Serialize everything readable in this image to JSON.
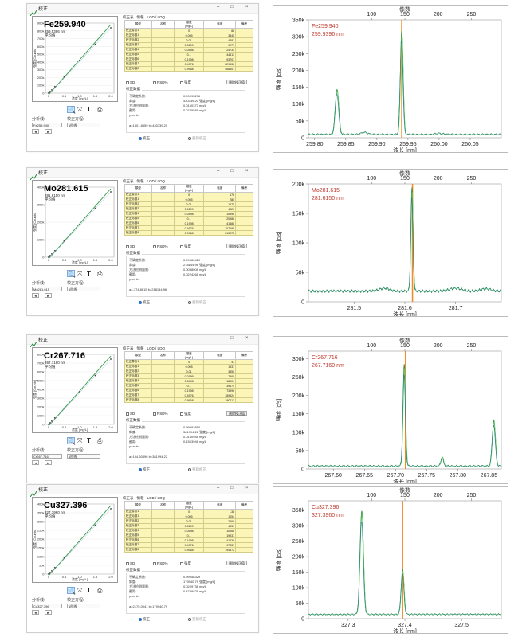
{
  "colors": {
    "accent": "#1f8a3a",
    "marker": "#f28c28",
    "label_red": "#c0392b",
    "row_yellow": "#fbf5b8"
  },
  "window": {
    "title": "校正",
    "buttons": {
      "minimize": "–",
      "maximize": "□",
      "close": "×"
    },
    "tabs": [
      "校正表",
      "情報",
      "LOD / LOQ"
    ],
    "table_headers": [
      "",
      "濃度",
      "強度",
      "単位"
    ],
    "header_type": "類型",
    "header_name": "名称",
    "header_conc_unit": "[mg/L]",
    "header_note": "備考",
    "checks": [
      "SD",
      "RSD%",
      "強度"
    ],
    "delete_label": "删除校正值",
    "result_title": "校正数据",
    "result_labels": [
      "不确定系数:",
      "斜度:",
      "方法检测量限:",
      "截距:",
      "y=a+bx"
    ],
    "radios": [
      "校正",
      "重新校正"
    ],
    "analyte_label": "分析线:",
    "calmode_label": "校正方程:",
    "calmode_value": "1阶线",
    "spin_prev": "◄",
    "spin_next": "►",
    "icons": [
      "zoom-icon",
      "pan-icon",
      "text-icon",
      "print-icon"
    ],
    "calib_ylabel": "强度 [Counts]",
    "calib_xlabel": "浓度 [mg/L]",
    "spec_xlabel": "波长 [nm]",
    "spec_ylabel": "强度 [c/s]",
    "spec_top_title": "像数"
  },
  "panels": [
    {
      "element": "Fe259.940",
      "wavelength_label": "259.9396 nm",
      "sub_note": "平均值",
      "dropdown": "Fe259.940",
      "rows": [
        {
          "name": "校正零点1",
          "conc": "0",
          "intensity": "66"
        },
        {
          "name": "校正标准1",
          "conc": "0.005",
          "intensity": "3845"
        },
        {
          "name": "校正标准2",
          "conc": "0.01",
          "intensity": "4781"
        },
        {
          "name": "校正标准3",
          "conc": "0.0199",
          "intensity": "9277"
        },
        {
          "name": "校正标准4",
          "conc": "0.0498",
          "intensity": "24734"
        },
        {
          "name": "校正标准5",
          "conc": "0.1",
          "intensity": "44413"
        },
        {
          "name": "校正标准6",
          "conc": "0.1998",
          "intensity": "93707"
        },
        {
          "name": "校正标准7",
          "conc": "0.4976",
          "intensity": "229636"
        },
        {
          "name": "校正标准8",
          "conc": "0.9968",
          "intensity": "466807"
        }
      ],
      "results": [
        "0.99993296",
        "430339.20 强度/[mg/L]",
        "0.0160377 mg/L",
        "0.0725588 mg/L",
        "y=a+bx"
      ],
      "equation": "a=1801.8359     b=430339.20",
      "calib_ylim": [
        0,
        900000
      ],
      "calib_yticks": [
        "900k",
        "800k",
        "700k",
        "600k",
        "500k",
        "400k",
        "300k",
        "200k",
        "100k",
        "0"
      ],
      "calib_points": [
        [
          0,
          0
        ],
        [
          0.005,
          0.004
        ],
        [
          0.01,
          0.005
        ],
        [
          0.02,
          0.01
        ],
        [
          0.05,
          0.026
        ],
        [
          0.1,
          0.05
        ],
        [
          0.2,
          0.1
        ],
        [
          0.5,
          0.25
        ],
        [
          1.0,
          0.5
        ],
        [
          1.5,
          0.75
        ],
        [
          2.0,
          1.0
        ]
      ],
      "spec": {
        "xlim": [
          259.79,
          260.1
        ],
        "ylim": [
          0,
          350000
        ],
        "xticks": [
          259.8,
          259.85,
          259.9,
          259.95,
          260.0,
          260.05
        ],
        "xtick_labels": [
          "259.80",
          "259.85",
          "259.90",
          "259.95",
          "260.00",
          "260.05"
        ],
        "yticks": [
          0,
          50000,
          100000,
          150000,
          200000,
          250000,
          300000,
          350000
        ],
        "ytick_labels": [
          "0",
          "50k",
          "100k",
          "150k",
          "200k",
          "250k",
          "300k",
          "350k"
        ],
        "top_ticks": [
          100,
          150,
          200,
          250
        ],
        "top_tick_labels": [
          "100",
          "150",
          "200",
          "250"
        ],
        "top_range": [
          5,
          295
        ],
        "marker": 259.94,
        "baseline": 10000,
        "peaks": [
          {
            "x": 259.836,
            "h": 135000,
            "w": 0.0028
          },
          {
            "x": 259.94,
            "h": 310000,
            "w": 0.0022
          }
        ],
        "bumps": [
          {
            "x": 259.88,
            "h": 6000,
            "w": 0.005
          },
          {
            "x": 260.0,
            "h": 3000,
            "w": 0.006
          }
        ]
      }
    },
    {
      "element": "Mo281.615",
      "wavelength_label": "281.6150 nm",
      "sub_note": "平均值",
      "dropdown": "Mo281.615",
      "rows": [
        {
          "name": "校正零点1",
          "conc": "0",
          "intensity": "176"
        },
        {
          "name": "校正标准1",
          "conc": "0.005",
          "intensity": "780"
        },
        {
          "name": "校正标准2",
          "conc": "0.01",
          "intensity": "1975"
        },
        {
          "name": "校正标准3",
          "conc": "0.0199",
          "intensity": "4029"
        },
        {
          "name": "校正标准4",
          "conc": "0.0498",
          "intensity": "10398"
        },
        {
          "name": "校正标准5",
          "conc": "0.1",
          "intensity": "20988"
        },
        {
          "name": "校正标准6",
          "conc": "0.1998",
          "intensity": "41888"
        },
        {
          "name": "校正标准7",
          "conc": "0.4976",
          "intensity": "107195"
        },
        {
          "name": "校正标准8",
          "conc": "0.9968",
          "intensity": "213972"
        }
      ],
      "results": [
        "0.99986429",
        "218144.96 强度/[mg/L]",
        "0.0038008 mg/L",
        "0.0224268 mg/L",
        "y=a+bx"
      ],
      "equation": "a=-774.8615     b=218144.96",
      "calib_ylim": [
        0,
        450000
      ],
      "calib_yticks": [
        "400k",
        "300k",
        "200k",
        "100k",
        "0"
      ],
      "calib_points": [
        [
          0,
          0
        ],
        [
          0.005,
          0.004
        ],
        [
          0.01,
          0.005
        ],
        [
          0.02,
          0.01
        ],
        [
          0.05,
          0.026
        ],
        [
          0.1,
          0.05
        ],
        [
          0.2,
          0.1
        ],
        [
          0.5,
          0.25
        ],
        [
          1.0,
          0.5
        ],
        [
          1.5,
          0.75
        ],
        [
          2.0,
          1.0
        ]
      ],
      "spec": {
        "xlim": [
          281.41,
          281.79
        ],
        "ylim": [
          0,
          200000
        ],
        "xticks": [
          281.5,
          281.6,
          281.7
        ],
        "xtick_labels": [
          "281.5",
          "281.6",
          "281.7"
        ],
        "yticks": [
          0,
          50000,
          100000,
          150000,
          200000
        ],
        "ytick_labels": [
          "0",
          "50k",
          "100k",
          "150k",
          "200k"
        ],
        "top_ticks": [
          100,
          150,
          200,
          250
        ],
        "top_tick_labels": [
          "100",
          "150",
          "200",
          "250"
        ],
        "top_range": [
          5,
          295
        ],
        "marker": 281.615,
        "baseline": 18000,
        "peaks": [
          {
            "x": 281.614,
            "h": 175000,
            "w": 0.0022
          }
        ],
        "bumps": [
          {
            "x": 281.56,
            "h": 5000,
            "w": 0.01
          },
          {
            "x": 281.7,
            "h": 5000,
            "w": 0.012
          },
          {
            "x": 281.76,
            "h": 4000,
            "w": 0.01
          }
        ]
      }
    },
    {
      "element": "Cr267.716",
      "wavelength_label": "267.7160 nm",
      "sub_note": "平均值",
      "dropdown": "Cr267.716",
      "rows": [
        {
          "name": "校正零点1",
          "conc": "0",
          "intensity": "41"
        },
        {
          "name": "校正标准1",
          "conc": "0.005",
          "intensity": "1937"
        },
        {
          "name": "校正标准2",
          "conc": "0.01",
          "intensity": "3850"
        },
        {
          "name": "校正标准3",
          "conc": "0.0199",
          "intensity": "7560"
        },
        {
          "name": "校正标准4",
          "conc": "0.0498",
          "intensity": "18504"
        },
        {
          "name": "校正标准5",
          "conc": "0.1",
          "intensity": "39474"
        },
        {
          "name": "校正标准6",
          "conc": "0.1998",
          "intensity": "73996"
        },
        {
          "name": "校正标准7",
          "conc": "0.4976",
          "intensity": "189924"
        },
        {
          "name": "校正标准8",
          "conc": "0.9968",
          "intensity": "380112"
        }
      ],
      "results": [
        "0.99993880",
        "381994.22 强度/[mg/L]",
        "0.0150948 mg/L",
        "0.1503948 mg/L",
        "y=a+bx"
      ],
      "equation": "a=194.60496     b=381994.22",
      "calib_ylim": [
        0,
        850000
      ],
      "calib_yticks": [
        "800k",
        "700k",
        "600k",
        "500k",
        "400k",
        "300k",
        "200k",
        "100k",
        "0"
      ],
      "calib_points": [
        [
          0,
          0
        ],
        [
          0.005,
          0.004
        ],
        [
          0.01,
          0.005
        ],
        [
          0.02,
          0.01
        ],
        [
          0.05,
          0.026
        ],
        [
          0.1,
          0.05
        ],
        [
          0.2,
          0.1
        ],
        [
          0.5,
          0.25
        ],
        [
          1.0,
          0.5
        ],
        [
          1.5,
          0.75
        ],
        [
          2.0,
          1.0
        ]
      ],
      "spec": {
        "xlim": [
          267.56,
          267.87
        ],
        "ylim": [
          0,
          320000
        ],
        "xticks": [
          267.6,
          267.65,
          267.7,
          267.75,
          267.8,
          267.85
        ],
        "xtick_labels": [
          "267.60",
          "267.65",
          "267.70",
          "267.75",
          "267.80",
          "267.85"
        ],
        "yticks": [
          0,
          50000,
          100000,
          150000,
          200000,
          250000,
          300000
        ],
        "ytick_labels": [
          "0",
          "50k",
          "100k",
          "150k",
          "200k",
          "250k",
          "300k"
        ],
        "top_ticks": [
          100,
          150,
          200,
          250
        ],
        "top_tick_labels": [
          "100",
          "150",
          "200",
          "250"
        ],
        "top_range": [
          5,
          295
        ],
        "marker": 267.716,
        "baseline": 8000,
        "peaks": [
          {
            "x": 267.714,
            "h": 275000,
            "w": 0.002
          },
          {
            "x": 267.775,
            "h": 25000,
            "w": 0.002
          },
          {
            "x": 267.858,
            "h": 125000,
            "w": 0.0025
          }
        ],
        "bumps": []
      }
    },
    {
      "element": "Cu327.396",
      "wavelength_label": "327.3960 nm",
      "sub_note": "平均值",
      "dropdown": "Cu327.396",
      "rows": [
        {
          "name": "校正零点1",
          "conc": "0",
          "intensity": "-38"
        },
        {
          "name": "校正标准1",
          "conc": "0.005",
          "intensity": "1054"
        },
        {
          "name": "校正标准2",
          "conc": "0.01",
          "intensity": "2068"
        },
        {
          "name": "校正标准3",
          "conc": "0.0199",
          "intensity": "4539"
        },
        {
          "name": "校正标准4",
          "conc": "0.0498",
          "intensity": "10066"
        },
        {
          "name": "校正标准5",
          "conc": "0.1",
          "intensity": "19937"
        },
        {
          "name": "校正标准6",
          "conc": "0.1998",
          "intensity": "41438"
        },
        {
          "name": "校正标准7",
          "conc": "0.4976",
          "intensity": "97437"
        },
        {
          "name": "校正标准8",
          "conc": "0.9968",
          "intensity": "194372"
        }
      ],
      "results": [
        "0.99958329",
        "179940.79 强度/[mg/L]",
        "0.0269738 mg/L",
        "0.4789825 mg/L",
        "y=a+bx"
      ],
      "equation": "a=2175.0041     b=179940.79",
      "calib_ylim": [
        0,
        450000
      ],
      "calib_yticks": [
        "400k",
        "350k",
        "300k",
        "250k",
        "200k",
        "150k",
        "100k",
        "50k",
        "0"
      ],
      "calib_points": [
        [
          0,
          0
        ],
        [
          0.005,
          0.004
        ],
        [
          0.01,
          0.005
        ],
        [
          0.02,
          0.01
        ],
        [
          0.05,
          0.026
        ],
        [
          0.1,
          0.05
        ],
        [
          0.2,
          0.1
        ],
        [
          0.5,
          0.25
        ],
        [
          1.0,
          0.5
        ],
        [
          1.5,
          0.75
        ],
        [
          2.0,
          1.0
        ]
      ],
      "spec": {
        "xlim": [
          327.23,
          327.57
        ],
        "ylim": [
          0,
          380000
        ],
        "xticks": [
          327.3,
          327.4,
          327.5
        ],
        "xtick_labels": [
          "327.3",
          "327.4",
          "327.5"
        ],
        "yticks": [
          0,
          50000,
          100000,
          150000,
          200000,
          250000,
          300000,
          350000
        ],
        "ytick_labels": [
          "0",
          "50k",
          "100k",
          "150k",
          "200k",
          "250k",
          "300k",
          "350k"
        ],
        "top_ticks": [
          100,
          150,
          200,
          250
        ],
        "top_tick_labels": [
          "100",
          "150",
          "200",
          "250"
        ],
        "top_range": [
          5,
          295
        ],
        "marker": 327.396,
        "baseline": 14000,
        "peaks": [
          {
            "x": 327.324,
            "h": 335000,
            "w": 0.003
          },
          {
            "x": 327.396,
            "h": 145000,
            "w": 0.0025
          }
        ],
        "bumps": []
      }
    }
  ],
  "chart_data": [
    {
      "type": "line",
      "ylabel": "强度 [c/s]",
      "xlabel": "波长 [nm]",
      "annotation": "Fe259.940 259.9396 nm",
      "xlim": [
        259.79,
        260.1
      ],
      "ylim": [
        0,
        350000
      ],
      "peaks_x": [
        259.836,
        259.94
      ],
      "peaks_y": [
        135000,
        310000
      ]
    },
    {
      "type": "line",
      "ylabel": "强度 [c/s]",
      "xlabel": "波长 [nm]",
      "annotation": "Mo281.615 281.6150 nm",
      "xlim": [
        281.41,
        281.79
      ],
      "ylim": [
        0,
        200000
      ],
      "peaks_x": [
        281.614
      ],
      "peaks_y": [
        175000
      ]
    },
    {
      "type": "line",
      "ylabel": "强度 [c/s]",
      "xlabel": "波长 [nm]",
      "annotation": "Cr267.716 267.7160 nm",
      "xlim": [
        267.56,
        267.87
      ],
      "ylim": [
        0,
        320000
      ],
      "peaks_x": [
        267.714,
        267.775,
        267.858
      ],
      "peaks_y": [
        275000,
        25000,
        125000
      ]
    },
    {
      "type": "line",
      "ylabel": "强度 [c/s]",
      "xlabel": "波长 [nm]",
      "annotation": "Cu327.396 327.3960 nm",
      "xlim": [
        327.23,
        327.57
      ],
      "ylim": [
        0,
        380000
      ],
      "peaks_x": [
        327.324,
        327.396
      ],
      "peaks_y": [
        335000,
        145000
      ]
    }
  ]
}
